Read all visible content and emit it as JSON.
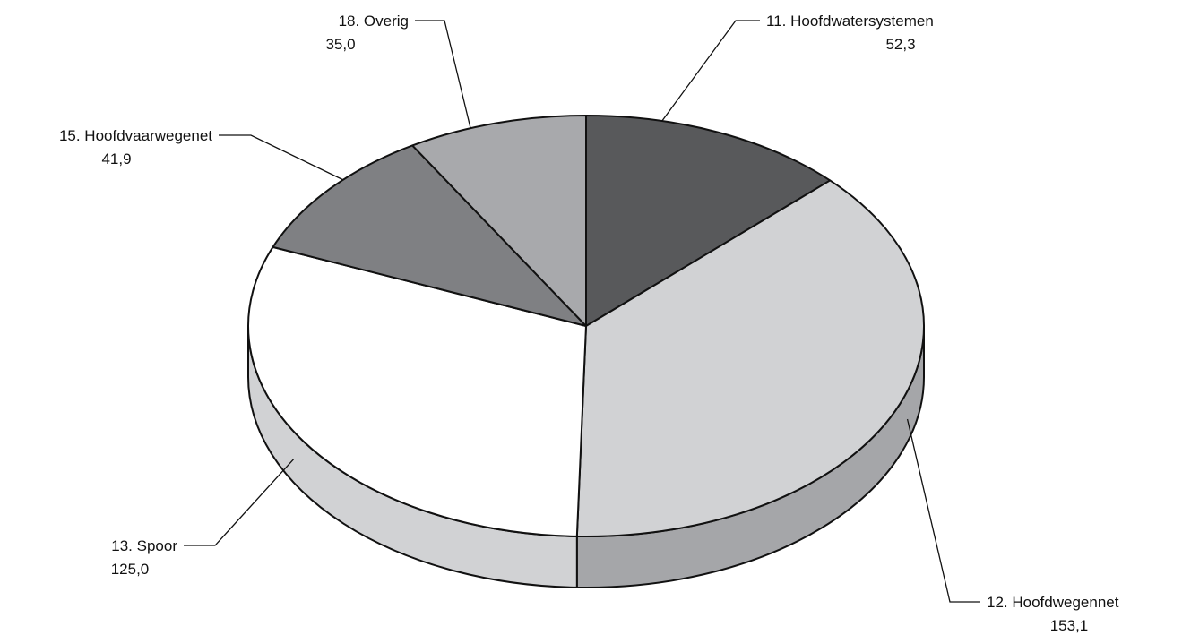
{
  "chart_data": {
    "type": "pie",
    "style": "3d",
    "categories": [
      "11. Hoofdwatersystemen",
      "12. Hoofdwegennet",
      "13. Spoor",
      "15. Hoofdvaarwegenet",
      "18. Overig"
    ],
    "values": [
      52.3,
      153.1,
      125.0,
      41.9,
      35.0
    ],
    "value_labels": [
      "52,3",
      "153,1",
      "125,0",
      "41,9",
      "35,0"
    ],
    "colors": {
      "top": [
        "#58595b",
        "#d1d2d4",
        "#ffffff",
        "#7f8083",
        "#a8a9ac"
      ],
      "side": [
        "#3f4042",
        "#a5a6a9",
        "#d1d2d4",
        "#5e5f62",
        "#86878a"
      ]
    },
    "title": "",
    "legend": "none"
  }
}
